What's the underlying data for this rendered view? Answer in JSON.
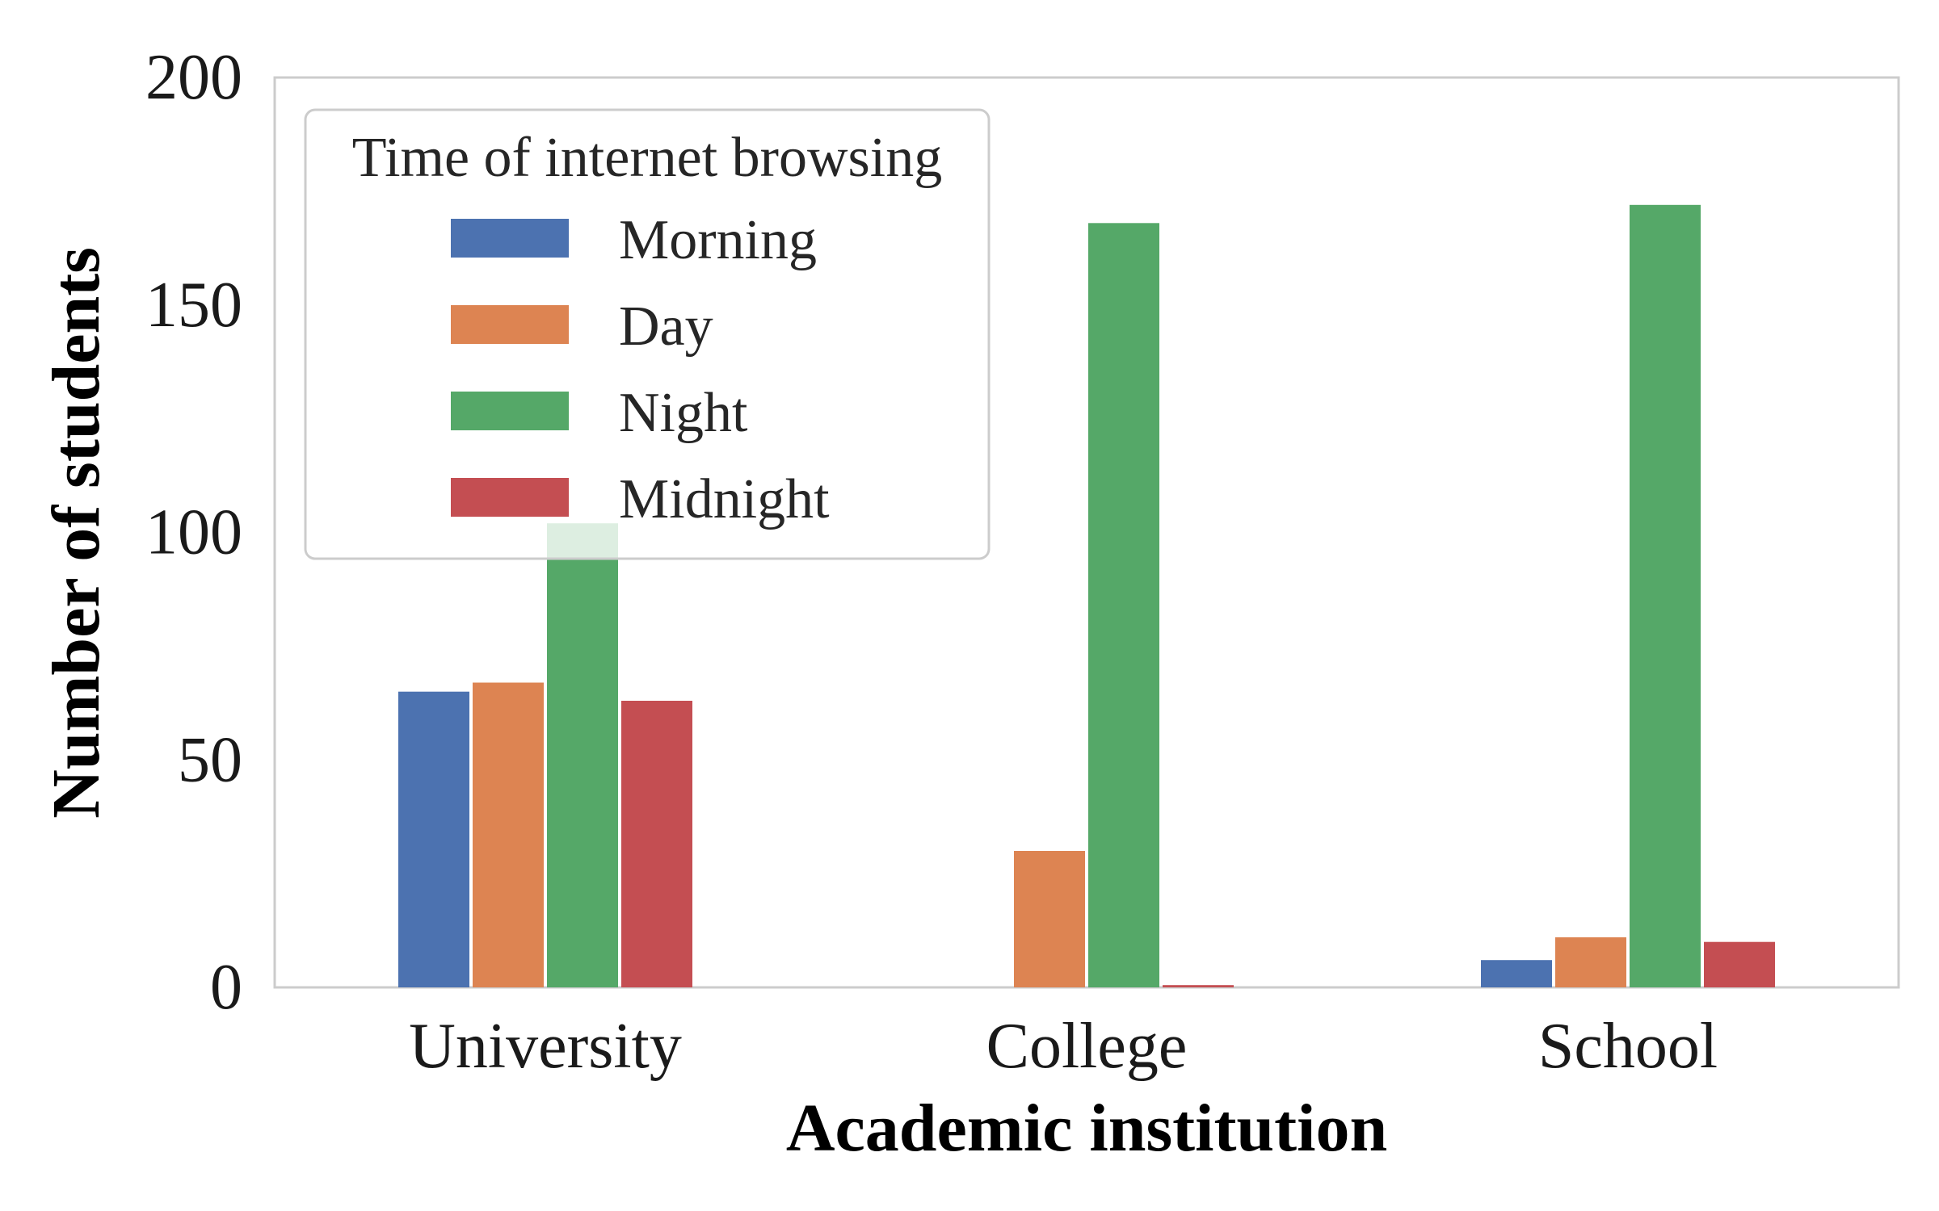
{
  "chart_data": {
    "type": "bar",
    "title": "",
    "xlabel": "Academic institution",
    "ylabel": "Number of students",
    "categories": [
      "University",
      "College",
      "School"
    ],
    "ylim": [
      0,
      200
    ],
    "yticks": [
      "0",
      "50",
      "100",
      "150",
      "200"
    ],
    "grid": false,
    "legend": {
      "title": "Time of internet browsing",
      "placement": "top-left"
    },
    "series": [
      {
        "name": "Morning",
        "color": "#4c72b0",
        "values": [
          65,
          0,
          6
        ]
      },
      {
        "name": "Day",
        "color": "#dd8452",
        "values": [
          67,
          30,
          11
        ]
      },
      {
        "name": "Night",
        "color": "#55a868",
        "values": [
          102,
          168,
          172
        ]
      },
      {
        "name": "Midnight",
        "color": "#c44e52",
        "values": [
          63,
          0.5,
          10
        ]
      }
    ]
  }
}
